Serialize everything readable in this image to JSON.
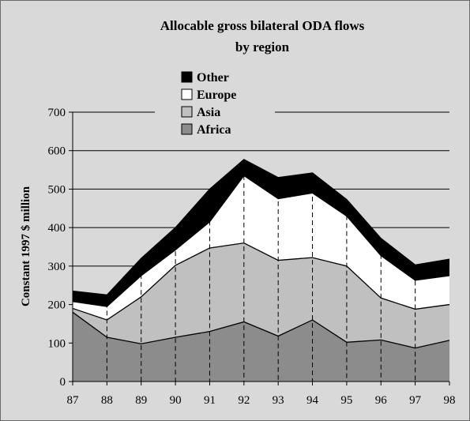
{
  "chart_data": {
    "type": "area",
    "stacked": true,
    "title_lines": [
      "Allocable gross bilateral ODA flows",
      "by region"
    ],
    "ylabel": "Constant 1997 $ million",
    "xlabel": "",
    "x": [
      "87",
      "88",
      "89",
      "90",
      "91",
      "92",
      "93",
      "94",
      "95",
      "96",
      "97",
      "98"
    ],
    "ylim": [
      0,
      700
    ],
    "yticks": [
      0,
      100,
      200,
      300,
      400,
      500,
      600,
      700
    ],
    "grid": true,
    "legend_position": "top-center",
    "series": [
      {
        "name": "Africa",
        "color": "#8c8c8c",
        "values": [
          180,
          115,
          98,
          115,
          130,
          155,
          118,
          160,
          102,
          108,
          87,
          107
        ]
      },
      {
        "name": "Asia",
        "color": "#c0c0c0",
        "values": [
          10,
          45,
          122,
          187,
          217,
          205,
          197,
          162,
          198,
          109,
          101,
          93
        ]
      },
      {
        "name": "Europe",
        "color": "#ffffff",
        "values": [
          18,
          35,
          55,
          40,
          68,
          175,
          160,
          168,
          130,
          110,
          75,
          75
        ]
      },
      {
        "name": "Other",
        "color": "#000000",
        "values": [
          27,
          30,
          45,
          58,
          85,
          42,
          55,
          52,
          43,
          45,
          40,
          43
        ]
      }
    ],
    "legend_order": [
      "Other",
      "Europe",
      "Asia",
      "Africa"
    ]
  }
}
